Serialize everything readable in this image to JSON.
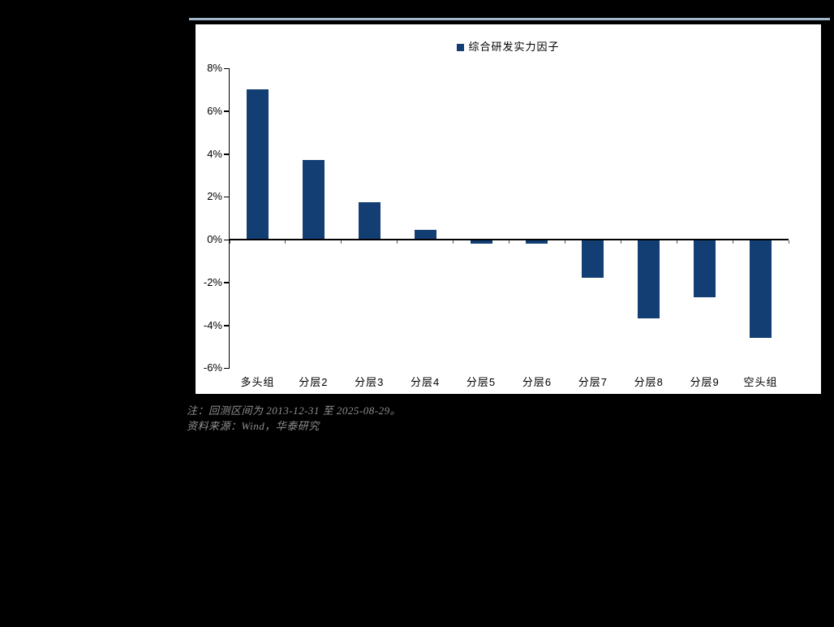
{
  "chart_data": {
    "type": "bar",
    "legend": "综合研发实力因子",
    "categories": [
      "多头组",
      "分层2",
      "分层3",
      "分层4",
      "分层5",
      "分层6",
      "分层7",
      "分层8",
      "分层9",
      "空头组"
    ],
    "values": [
      7.0,
      3.7,
      1.75,
      0.45,
      -0.15,
      -0.15,
      -1.75,
      -3.65,
      -2.65,
      -4.55
    ],
    "unit": "%",
    "ylim": [
      -6,
      8
    ],
    "yticks": [
      8,
      6,
      4,
      2,
      0,
      -2,
      -4,
      -6
    ],
    "ytick_labels": [
      "8%",
      "6%",
      "4%",
      "2%",
      "0%",
      "-2%",
      "-4%",
      "-6%"
    ],
    "grid": false,
    "legend_position": "top-center"
  },
  "notes": {
    "line1": "注：回测区间为 2013-12-31 至 2025-08-29。",
    "line2": "资料来源：Wind，华泰研究"
  },
  "colors": {
    "background": "#000000",
    "panel": "#FFFFFF",
    "bar": "#123E73",
    "accent_line": "#9FB6CB",
    "note_text": "#8F8F8F",
    "axis": "#000000"
  }
}
